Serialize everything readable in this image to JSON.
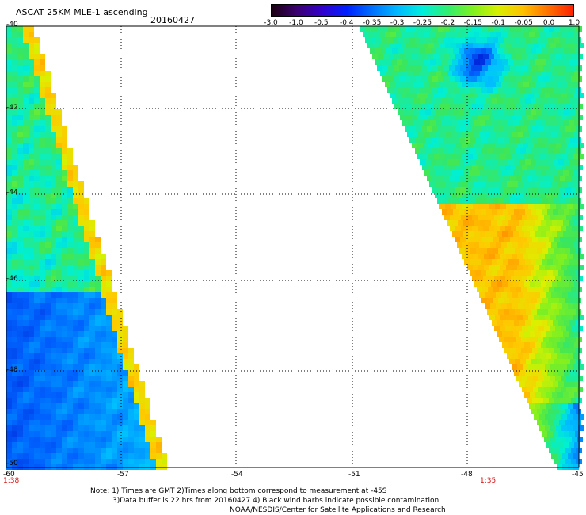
{
  "header": {
    "title": "ASCAT 25KM MLE-1 ascending",
    "date": "20160427"
  },
  "colorbar": {
    "labels": [
      "-3.0",
      "-1.0",
      "-0.5",
      "-0.4",
      "-0.35",
      "-0.3",
      "-0.25",
      "-0.2",
      "-0.15",
      "-0.1",
      "-0.05",
      "0.0",
      "1.0"
    ],
    "colors": [
      "#1a0010",
      "#3b0070",
      "#3300cc",
      "#0020ff",
      "#0070ff",
      "#00b8ff",
      "#00eedd",
      "#30ee70",
      "#80f020",
      "#d8f000",
      "#ffc000",
      "#ff7000",
      "#ff2000"
    ]
  },
  "axes": {
    "x_labels": [
      "-60",
      "-57",
      "-54",
      "-51",
      "-48",
      "-45"
    ],
    "y_labels": [
      "-40",
      "-42",
      "-44",
      "-46",
      "-48",
      "-50"
    ]
  },
  "times": {
    "left": "1:38",
    "right": "1:35"
  },
  "notes": {
    "line1": "Note: 1) Times are GMT 2)Times along bottom correspond to measurement at -45S",
    "line2": "3)Data buffer is 22 hrs from 20160427 4) Black wind barbs indicate possible contamination",
    "line3": "NOAA/NESDIS/Center for Satellite Applications and Research"
  }
}
